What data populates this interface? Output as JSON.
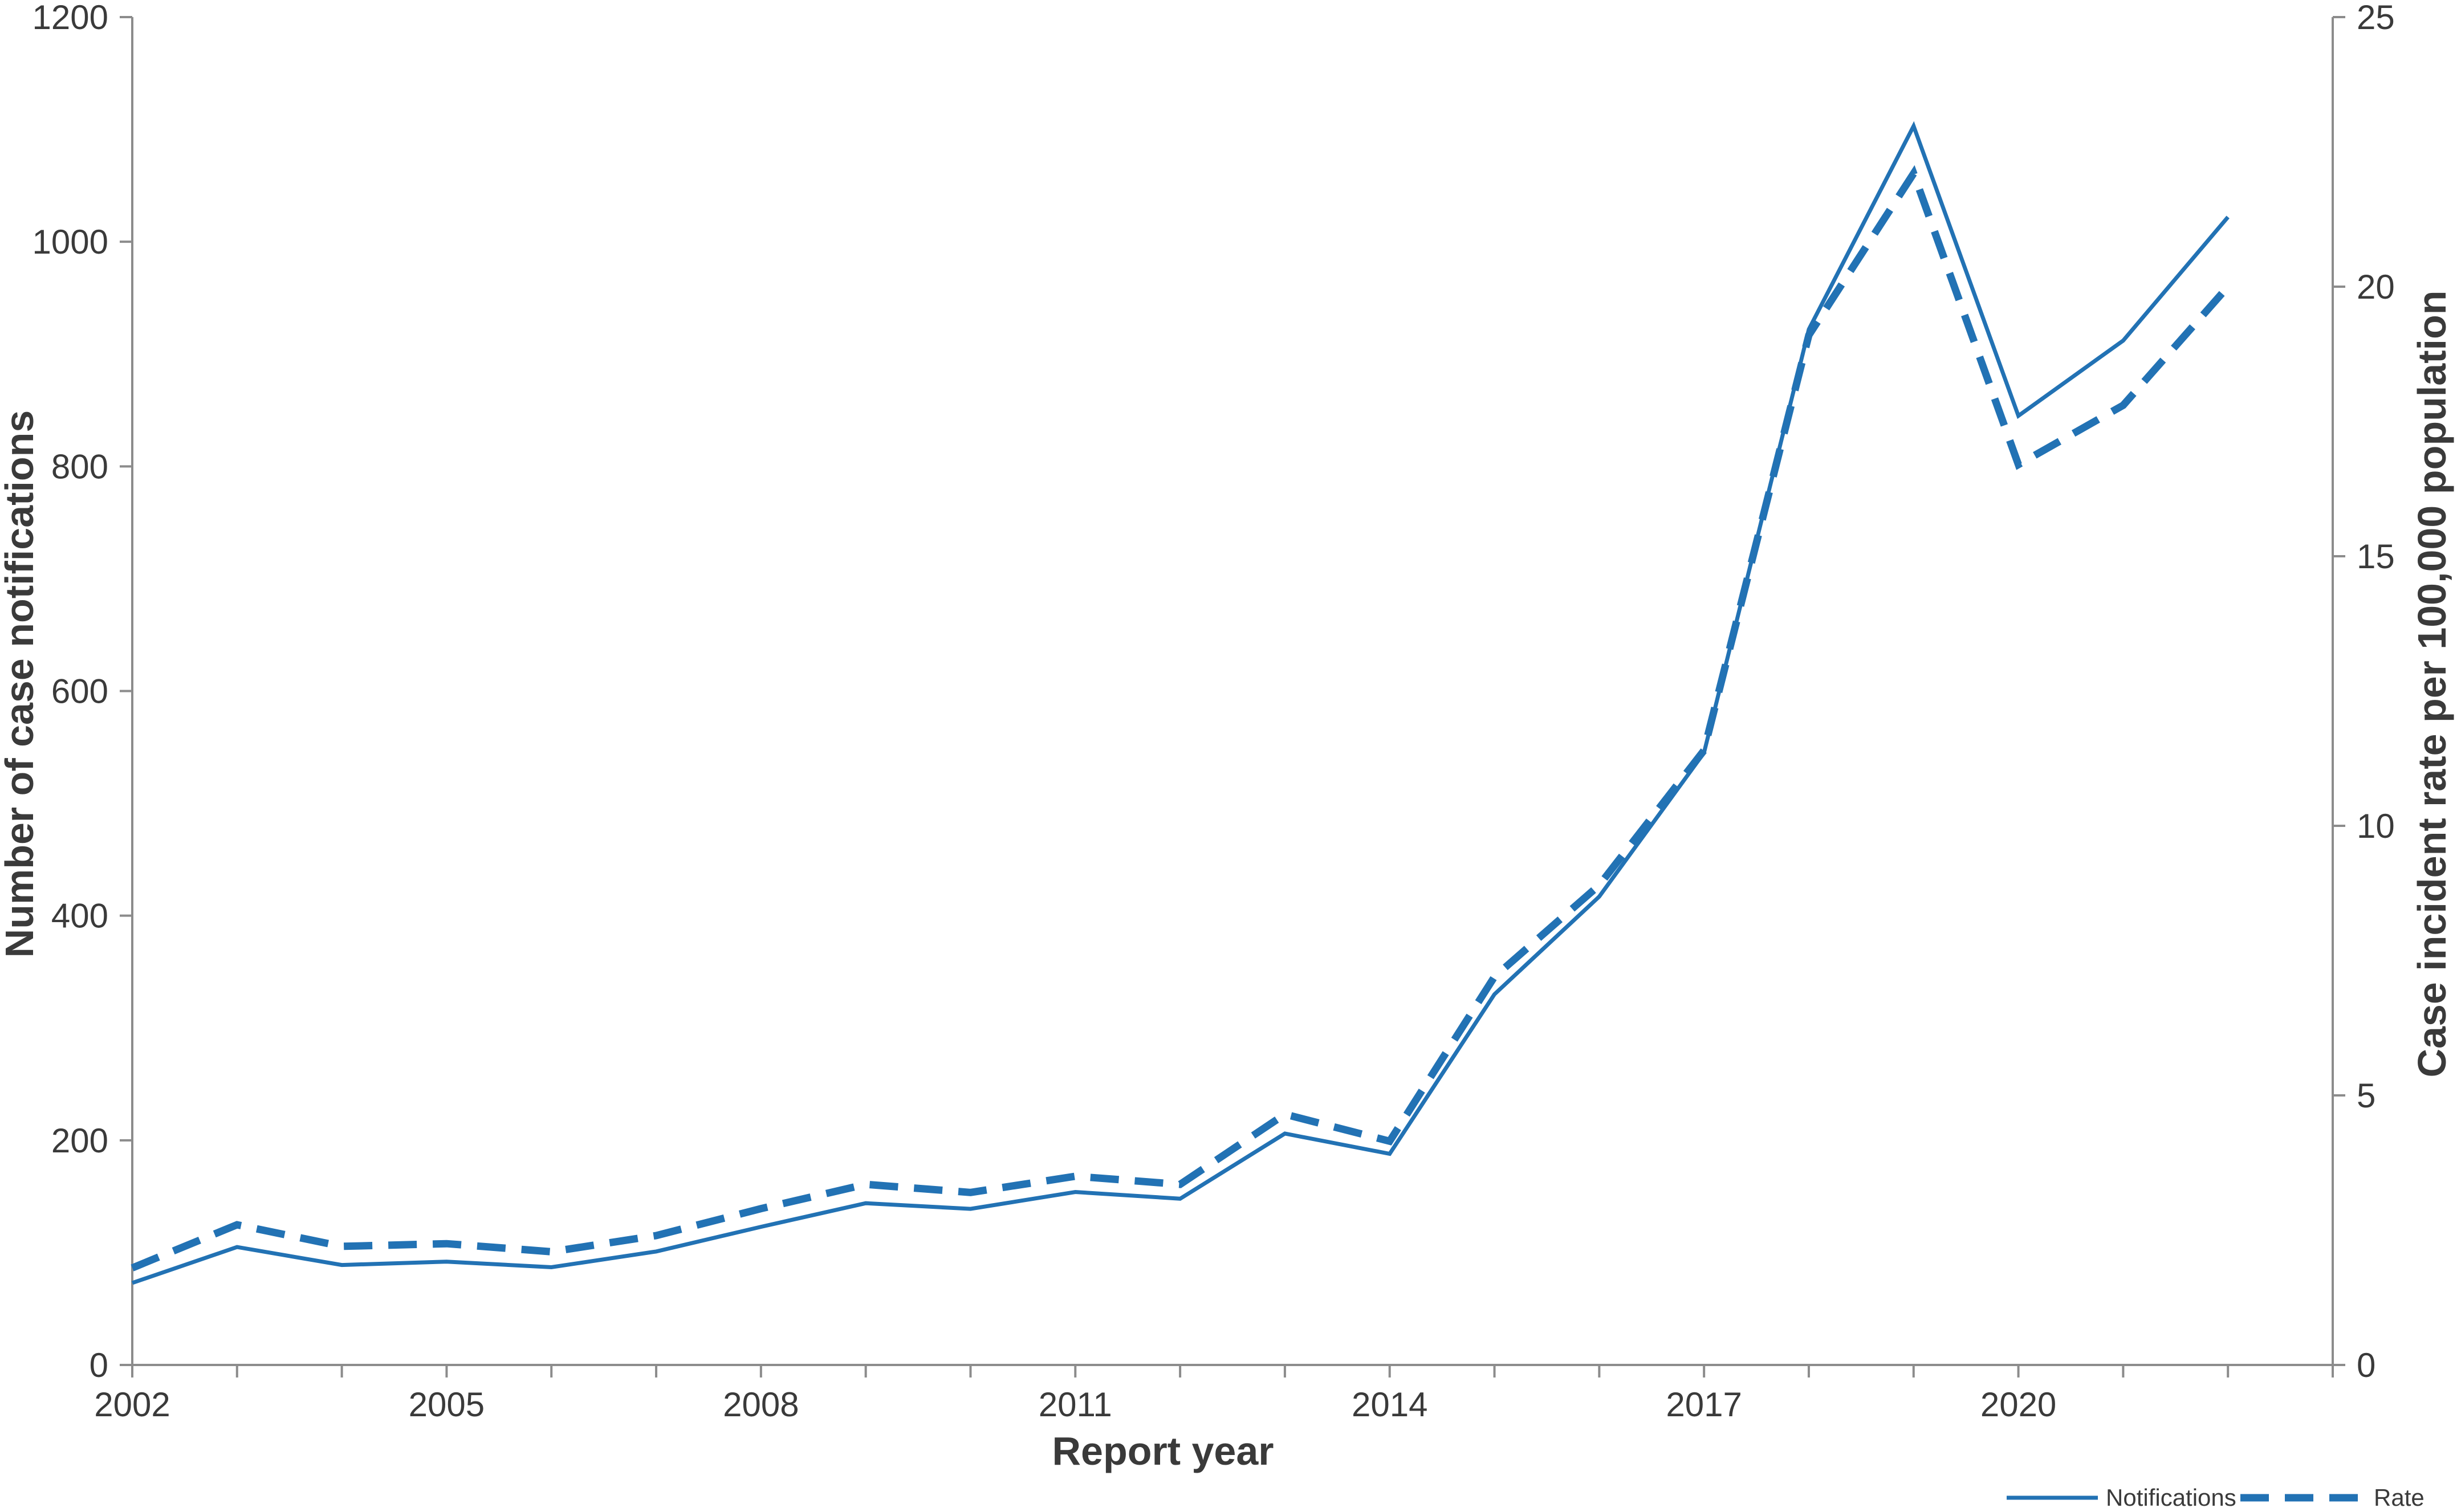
{
  "chart_data": {
    "type": "line",
    "x": [
      2002,
      2003,
      2004,
      2005,
      2006,
      2007,
      2008,
      2009,
      2010,
      2011,
      2012,
      2013,
      2014,
      2015,
      2016,
      2017,
      2018,
      2019,
      2020,
      2021,
      2022
    ],
    "xticks": [
      "2002",
      "2005",
      "2008",
      "2011",
      "2014",
      "2017",
      "2020"
    ],
    "xlabel": "Report year",
    "ylabel_left": "Number of case notifications",
    "ylabel_right": "Case incident rate per 100,000 population",
    "ylim_left": [
      0,
      1200
    ],
    "ylim_right": [
      0,
      25
    ],
    "yticks_left": [
      "0",
      "200",
      "400",
      "600",
      "800",
      "1000",
      "1200"
    ],
    "yticks_right": [
      "0",
      "5",
      "10",
      "15",
      "20",
      "25"
    ],
    "series": [
      {
        "name": "Notifications",
        "axis": "left",
        "style": "solid",
        "values": [
          73,
          105,
          89,
          92,
          87,
          101,
          123,
          144,
          139,
          154,
          148,
          206,
          188,
          330,
          417,
          545,
          922,
          1103,
          845,
          912,
          1022
        ]
      },
      {
        "name": "Rate",
        "axis": "right",
        "style": "dashed",
        "values": [
          1.8,
          2.6,
          2.2,
          2.25,
          2.1,
          2.4,
          2.9,
          3.35,
          3.2,
          3.5,
          3.35,
          4.65,
          4.15,
          7.2,
          8.9,
          11.4,
          19.1,
          22.1,
          16.7,
          17.8,
          20.0
        ]
      }
    ],
    "legend_position": "bottom-right",
    "grid": false,
    "colors": {
      "line": "#2272b4",
      "axis": "#8c8c8c",
      "text": "#3a3a3a"
    }
  }
}
